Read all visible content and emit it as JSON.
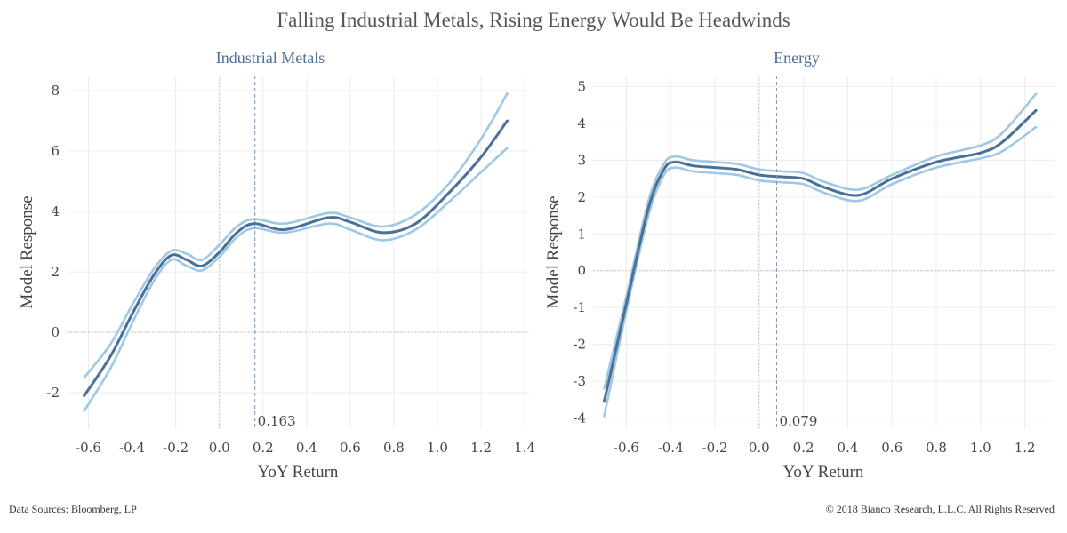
{
  "title": "Falling Industrial Metals, Rising Energy Would Be Headwinds",
  "footer": {
    "source": "Data Sources: Bloomberg, LP",
    "copyright": "© 2018 Bianco Research, L.L.C. All Rights Reserved"
  },
  "colors": {
    "mean": "#4c6f96",
    "band": "#9fc8e4",
    "grid": "#ececec",
    "ref": "#b8b8b8",
    "vline": "#7a96b8"
  },
  "chart_data": [
    {
      "type": "line",
      "title": "Industrial Metals",
      "xlabel": "YoY Return",
      "ylabel": "Model Response",
      "xlim": [
        -0.7,
        1.42
      ],
      "ylim": [
        -3.2,
        8.5
      ],
      "x_ticks": [
        "-0.6",
        "-0.4",
        "-0.2",
        "0.0",
        "0.2",
        "0.4",
        "0.6",
        "0.8",
        "1.0",
        "1.2",
        "1.4"
      ],
      "y_ticks": [
        "-2",
        "0",
        "2",
        "4",
        "6",
        "8"
      ],
      "grid": true,
      "vline": {
        "x": 0.163,
        "label": "0.163"
      },
      "series": [
        {
          "role": "upper",
          "x": [
            -0.62,
            -0.5,
            -0.4,
            -0.3,
            -0.22,
            -0.15,
            -0.08,
            0.0,
            0.08,
            0.16,
            0.3,
            0.5,
            0.6,
            0.75,
            0.9,
            1.05,
            1.2,
            1.32
          ],
          "values": [
            -1.5,
            -0.4,
            0.9,
            2.1,
            2.7,
            2.6,
            2.4,
            2.9,
            3.5,
            3.75,
            3.6,
            3.95,
            3.8,
            3.5,
            3.9,
            4.9,
            6.4,
            7.9
          ]
        },
        {
          "role": "mean",
          "x": [
            -0.62,
            -0.5,
            -0.4,
            -0.3,
            -0.22,
            -0.15,
            -0.08,
            0.0,
            0.08,
            0.16,
            0.3,
            0.5,
            0.6,
            0.75,
            0.9,
            1.05,
            1.2,
            1.32
          ],
          "values": [
            -2.1,
            -0.8,
            0.6,
            1.9,
            2.55,
            2.4,
            2.2,
            2.65,
            3.3,
            3.6,
            3.4,
            3.8,
            3.65,
            3.3,
            3.6,
            4.6,
            5.8,
            7.0
          ]
        },
        {
          "role": "lower",
          "x": [
            -0.62,
            -0.5,
            -0.4,
            -0.3,
            -0.22,
            -0.15,
            -0.08,
            0.0,
            0.08,
            0.16,
            0.3,
            0.5,
            0.6,
            0.75,
            0.9,
            1.05,
            1.2,
            1.32
          ],
          "values": [
            -2.6,
            -1.2,
            0.3,
            1.7,
            2.4,
            2.2,
            2.05,
            2.5,
            3.15,
            3.45,
            3.3,
            3.6,
            3.4,
            3.05,
            3.4,
            4.3,
            5.3,
            6.1
          ]
        }
      ]
    },
    {
      "type": "line",
      "title": "Energy",
      "xlabel": "YoY Return",
      "ylabel": "Model Response",
      "xlim": [
        -0.75,
        1.33
      ],
      "ylim": [
        -4.3,
        5.3
      ],
      "x_ticks": [
        "-0.6",
        "-0.4",
        "-0.2",
        "0.0",
        "0.2",
        "0.4",
        "0.6",
        "0.8",
        "1.0",
        "1.2"
      ],
      "y_ticks": [
        "-4",
        "-3",
        "-2",
        "-1",
        "0",
        "1",
        "2",
        "3",
        "4",
        "5"
      ],
      "grid": true,
      "vline": {
        "x": 0.079,
        "label": "0.079"
      },
      "series": [
        {
          "role": "upper",
          "x": [
            -0.7,
            -0.6,
            -0.5,
            -0.43,
            -0.38,
            -0.3,
            -0.2,
            -0.1,
            0.0,
            0.1,
            0.2,
            0.3,
            0.45,
            0.6,
            0.8,
            1.0,
            1.1,
            1.25
          ],
          "values": [
            -3.2,
            -0.7,
            1.9,
            2.9,
            3.1,
            3.0,
            2.95,
            2.9,
            2.75,
            2.7,
            2.65,
            2.4,
            2.2,
            2.6,
            3.1,
            3.4,
            3.75,
            4.8
          ]
        },
        {
          "role": "mean",
          "x": [
            -0.7,
            -0.6,
            -0.5,
            -0.43,
            -0.38,
            -0.3,
            -0.2,
            -0.1,
            0.0,
            0.1,
            0.2,
            0.3,
            0.45,
            0.6,
            0.8,
            1.0,
            1.1,
            1.25
          ],
          "values": [
            -3.55,
            -0.9,
            1.7,
            2.75,
            2.95,
            2.85,
            2.8,
            2.75,
            2.6,
            2.55,
            2.5,
            2.25,
            2.05,
            2.5,
            2.95,
            3.2,
            3.5,
            4.35
          ]
        },
        {
          "role": "lower",
          "x": [
            -0.7,
            -0.6,
            -0.5,
            -0.43,
            -0.38,
            -0.3,
            -0.2,
            -0.1,
            0.0,
            0.1,
            0.2,
            0.3,
            0.45,
            0.6,
            0.8,
            1.0,
            1.1,
            1.25
          ],
          "values": [
            -3.95,
            -1.1,
            1.5,
            2.6,
            2.8,
            2.7,
            2.65,
            2.6,
            2.45,
            2.4,
            2.35,
            2.1,
            1.9,
            2.35,
            2.8,
            3.05,
            3.25,
            3.9
          ]
        }
      ]
    }
  ]
}
